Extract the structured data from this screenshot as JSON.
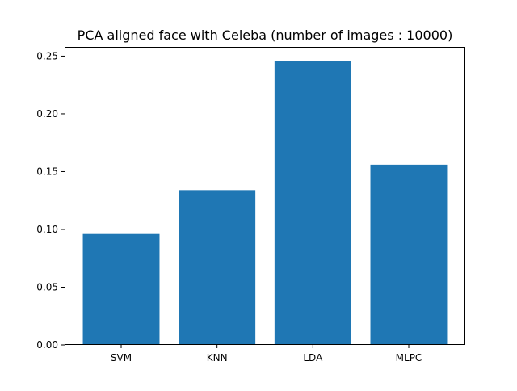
{
  "chart_data": {
    "type": "bar",
    "title": "PCA aligned face with Celeba (number of images : 10000)",
    "xlabel": "",
    "ylabel": "",
    "categories": [
      "SVM",
      "KNN",
      "LDA",
      "MLPC"
    ],
    "values": [
      0.096,
      0.134,
      0.246,
      0.156
    ],
    "ylim": [
      0,
      0.258
    ],
    "yticks": [
      0.0,
      0.05,
      0.1,
      0.15,
      0.2,
      0.25
    ],
    "ytick_labels": [
      "0.00",
      "0.05",
      "0.10",
      "0.15",
      "0.20",
      "0.25"
    ],
    "bar_color": "#1f77b4",
    "grid": false,
    "legend": "none"
  }
}
